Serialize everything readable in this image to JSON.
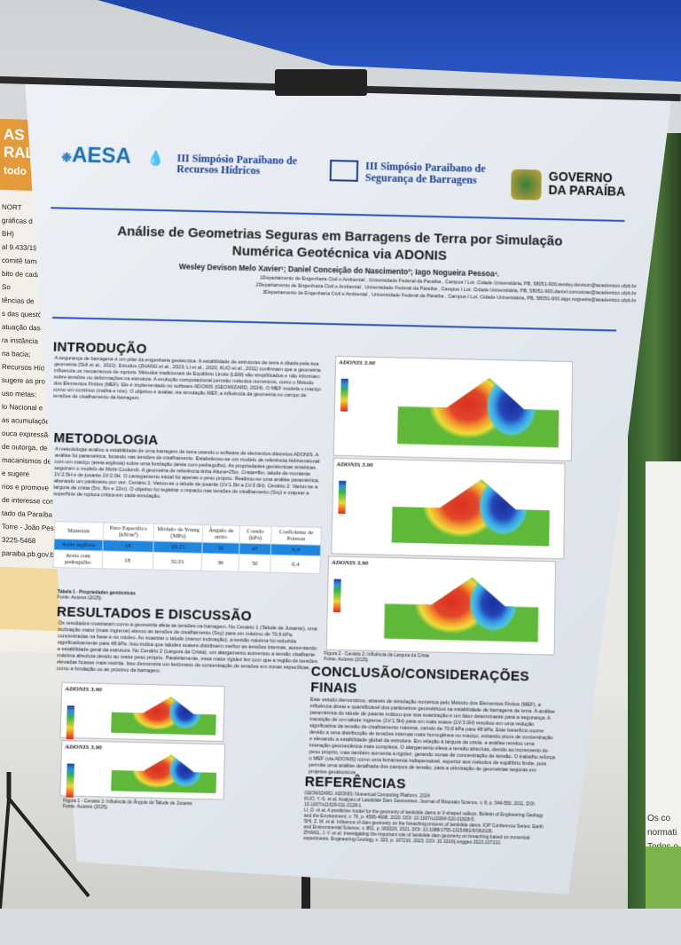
{
  "background": {
    "left_poster": {
      "header_lines": [
        "AS",
        "RAL",
        "todo"
      ],
      "lines": [
        "NORT",
        "gráficas d",
        "BH)",
        "al 9.433/19",
        "comitê tamb",
        "bito de cada",
        "So",
        "tências de",
        "s das questões",
        "atuação das",
        "ra instância",
        "na bacia;",
        "Recursos Hídri",
        "sugere as prov",
        "uso metas;",
        "lo Nacional e",
        "as acumulaçõe",
        "ouca expressão",
        "de outorga, de",
        "macanismos de",
        "e sugere",
        "rios e promove",
        "de interesse com",
        "tado da Paraíba",
        "Torre - João Pess",
        "3225-5468",
        "paraiba.pb.gov.br"
      ]
    },
    "right_sign_lines": [
      "Os co",
      "normati",
      "Todos o"
    ]
  },
  "poster": {
    "logos": {
      "aesa": "AESA",
      "recursos": [
        "III Simpósio Paraibano de",
        "Recursos Hídricos"
      ],
      "barragens": [
        "III Simpósio Paraibano de",
        "Segurança de Barragens"
      ],
      "governo": [
        "GOVERNO",
        "DA PARAÍBA"
      ]
    },
    "title": [
      "Análise de Geometrias Seguras em Barragens de Terra por Simulação",
      "Numérica Geotécnica via ADONIS"
    ],
    "authors": "Wesley Devison Melo Xavier¹; Daniel Conceição do Nascimento²; Iago Nogueira Pessoa³.",
    "affiliations": [
      "1Departamento de Engenharia Civil e Ambiental , Universidade Federal da Paraíba , Campus I Lot. Cidade Universitária, PB, 58051-900,wesley.devison@academico.ufpb.br",
      "2Departamento de Engenharia Civil e Ambiental , Universidade Federal da Paraíba , Campus I Lot. Cidade Universitária, PB, 58051-900,daniel.conceicao@academico.ufpb.br",
      "3Departamento de Engenharia Civil e Ambiental , Universidade Federal da Paraíba , Campus I Lot. Cidade Universitária, PB, 58051-900,iago.nogueira@academico.ufpb.br"
    ],
    "intro": {
      "heading": "INTRODUÇÃO",
      "text": "A segurança de barragens é um pilar da engenharia geotécnica. A estabilidade de estruturas de terra é ditada pela sua geometria (SHI et al., 2021). Estudos (ZHANG et al., 2023; LI et al., 2020; KUO et al., 2011) confirmam que a geometria influencia os mecanismos de ruptura. Métodos tradicionais de Equilíbrio Limite (LEM) são simplificados e não informam sobre tensões ou deformações na estrutura. A evolução computacional permitiu métodos numéricos, como o Método dos Elementos Finitos (MEF). Ele é implementado no software ADONIS (GEOWIZARD, 2024). O MEF modela o maciço como um contínuo (malha e nós). O objetivo é avaliar, via simulação MEF, a influência da geometria no campo de tensões de cisalhamento da barragem."
    },
    "method": {
      "heading": "METODOLOGIA",
      "text": "A metodologia avaliou a estabilidade de uma barragem de terra usando o software de elementos discretos ADONIS. A análise foi paramétrica, focando nas tensões de cisalhamento. Estabeleceu-se um modelo de referência bidimensional com um maciço (areia argilosa) sobre uma fundação (areia com pedregulho). As propriedades geotécnicas sintéticas seguiram o modelo de Mohr-Coulomb. A geometria de referência tinha Altura=25m, Crista=8m, talude de montante 1V:2.5H e de jusante 1V:2.0H. O carregamento inicial foi apenas o peso próprio. Realizou-se uma análise paramétrica, alterando um parâmetro por vez. Cenário 1: Variou-se o talude de jusante (1V:1.5H a 1V:3.0H). Cenário 2: Variou-se a largura da crista (5m, 8m e 12m). O objetivo foi registrar o impacto nas tensões de cisalhamento (Sxy) e mapear a superfície de ruptura crítica em cada simulação."
    },
    "table": {
      "headers": [
        "Materiais",
        "Peso Específico (kN/m³)",
        "Módulo de Young (MPa)",
        "Ângulo de atrito",
        "Coesão (kPa)",
        "Coeficiente de Poisson"
      ],
      "rows": [
        [
          "Areia argilosa",
          "18",
          "29,15",
          "32",
          "47",
          "0,4"
        ],
        [
          "Areia com pedregulho",
          "18",
          "32,01",
          "36",
          "50",
          "0,4"
        ]
      ],
      "caption": "Tabela 1 - Propriedades geotécnicas",
      "source": "Fonte: Autores (2025)."
    },
    "results": {
      "heading": "RESULTADOS E DISCUSSÃO",
      "text": "Os resultados mostraram como a geometria afeta as tensões na barragem. No Cenário 1 (Talude de Jusante), uma inclinação maior (mais íngreme) elevou as tensões de cisalhamento (Sxy) para um máximo de 70,6 kPa, concentradas na base e no núcleo. Ao suavizar o talude (menor inclinação), a tensão máxima foi reduzida significativamente para 48 kPa. Isso indica que taludes suaves distribuem melhor as tensões internas, aumentando a estabilidade geral da estrutura. No Cenário 2 (Largura da Crista), um alargamento aumentou a tensão cisalhante máxima absoluta devido ao maior peso próprio. Paralelamente, essa maior rigidez fez com que a região de tensões elevadas ficasse mais restrita. Isso demonstra um fenômeno de concentração de tensões em zonas específicas, como a fundação ou as próximo da barragem.",
      "fig1_caption": "Figura 1 - Cenário 1: Influência do Ângulo do Talude de Jusante",
      "fig1_source": "Fonte: Autores (2025)."
    },
    "figures": {
      "software_label": "ADONIS 3.90",
      "fig2_caption": "Figura 2 - Cenário 2: Influência da Largura da Crista",
      "fig2_source": "Fonte: Autores (2025)"
    },
    "conclusion": {
      "heading": [
        "CONCLUSÃO/CONSIDERAÇÕES",
        "FINAIS"
      ],
      "text": "Este estudo demonstrou, através de simulação numérica pelo Método dos Elementos Finitos (MEF), a influência direta e quantificável dos parâmetros geométricos na estabilidade de barragens de terra. A análise paramétrica do talude de jusante indicou que sua suavização é um fator determinante para a segurança. A transição de um talude íngreme (1V:1.5H) para um mais suave (1V:3.0H) resultou em uma redução significativa da tensão de cisalhamento máxima, caindo de 70,6 kPa para 48 kPa. Este benefício ocorre devido a uma distribuição de tensões internas mais homogênea no maciço, evitando picos de concentração e elevando a estabilidade global da estrutura. Em relação à largura da crista, a análise revelou uma interação geomecânica mais complexa. O alargamento eleva a tensão absoluta, devido ao incremento do peso próprio, mas também aumenta a rigidez, gerando zonas de concentração de tensão. O trabalho reforça o MEF (via ADONIS) como uma ferramenta indispensável, superior aos métodos de equilíbrio limite, pois permite uma análise detalhada dos campos de tensão, para a otimização de geometrias seguras em projetos geotécnicos."
    },
    "references": {
      "heading": "REFERÊNCIAS",
      "items": [
        "GEOWIZARD. ADONIS: Numerical Computing Platform. 2024",
        "KUO, Y.-S. et al. Analysis of Landslide Dam Geometries. Journal of Mountain Science, v. 8, p. 544-550, 2011. DOI: 10.1007/s11629-011-2128-1.",
        "LI, D. et al. A predictive model for the geometry of landslide dams in V-shaped valleys. Bulletin of Engineering Geology and the Environment, v. 79, p. 4595-4608, 2020. DOI: 10.1007/s10064-020-01828-5.",
        "SHI, Z. M. et al. Influence of dam geometry on the breaching process of landslide dams. IOP Conference Series: Earth and Environmental Science, v. 861, p. 062026, 2021. DOI: 10.1088/1755-1315/861/6/062026.",
        "ZHANG, J.-Y. et al. Investigating the important role of landslide dam geometry on breaching based on numerical experiments. Engineering Geology, v. 323, p. 107210, 2023. DOI: 10.1016/j.enggeo.2023.107210."
      ]
    }
  }
}
